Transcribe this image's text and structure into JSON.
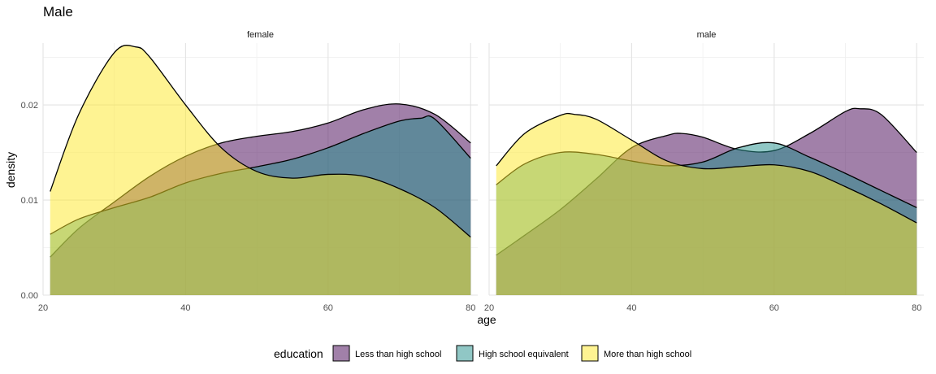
{
  "chart_data": {
    "type": "area",
    "title": "Male",
    "xlabel": "age",
    "ylabel": "density",
    "xlim": [
      20,
      81
    ],
    "ylim": [
      0,
      0.0265
    ],
    "x_ticks": [
      20,
      40,
      60,
      80
    ],
    "y_ticks": [
      0.0,
      0.01,
      0.02
    ],
    "y_tick_labels": [
      "0.00",
      "0.01",
      "0.02"
    ],
    "grid": true,
    "legend_position": "bottom",
    "legend_title": "education",
    "colors": {
      "Less than high school": "#440154",
      "High school equivalent": "#21908C",
      "More than high school": "#FDE725"
    },
    "fill_opacity": 0.5,
    "panels": [
      {
        "label": "female",
        "series": [
          {
            "name": "Less than high school",
            "x": [
              21,
              25,
              30,
              35,
              40,
              45,
              50,
              55,
              60,
              65,
              70,
              75,
              80
            ],
            "y": [
              0.004,
              0.007,
              0.0098,
              0.0125,
              0.0146,
              0.016,
              0.0167,
              0.0172,
              0.0181,
              0.0195,
              0.0201,
              0.019,
              0.016
            ]
          },
          {
            "name": "High school equivalent",
            "x": [
              21,
              25,
              30,
              35,
              40,
              45,
              50,
              55,
              60,
              65,
              70,
              73,
              75,
              80
            ],
            "y": [
              0.0064,
              0.008,
              0.0092,
              0.0103,
              0.0118,
              0.0128,
              0.0135,
              0.0143,
              0.0155,
              0.017,
              0.0183,
              0.0186,
              0.0185,
              0.0144
            ]
          },
          {
            "name": "More than high school",
            "x": [
              21,
              25,
              30,
              33,
              35,
              40,
              45,
              50,
              55,
              60,
              65,
              70,
              75,
              80
            ],
            "y": [
              0.0109,
              0.019,
              0.0255,
              0.0261,
              0.025,
              0.02,
              0.0155,
              0.013,
              0.0123,
              0.0127,
              0.0125,
              0.0112,
              0.0092,
              0.0061
            ]
          }
        ]
      },
      {
        "label": "male",
        "series": [
          {
            "name": "Less than high school",
            "x": [
              21,
              25,
              30,
              35,
              40,
              45,
              47,
              50,
              55,
              60,
              65,
              70,
              72,
              75,
              80
            ],
            "y": [
              0.0042,
              0.0063,
              0.009,
              0.0122,
              0.0155,
              0.0168,
              0.017,
              0.0166,
              0.0153,
              0.0152,
              0.017,
              0.0193,
              0.0196,
              0.019,
              0.015
            ]
          },
          {
            "name": "High school equivalent",
            "x": [
              21,
              25,
              30,
              35,
              40,
              45,
              50,
              55,
              60,
              65,
              70,
              75,
              80
            ],
            "y": [
              0.0116,
              0.0138,
              0.015,
              0.0148,
              0.0141,
              0.0136,
              0.014,
              0.0155,
              0.016,
              0.0145,
              0.0128,
              0.011,
              0.0092
            ]
          },
          {
            "name": "More than high school",
            "x": [
              21,
              25,
              30,
              32,
              35,
              40,
              45,
              50,
              55,
              60,
              65,
              70,
              75,
              80
            ],
            "y": [
              0.0136,
              0.017,
              0.0189,
              0.019,
              0.0185,
              0.0163,
              0.0141,
              0.0133,
              0.0135,
              0.0137,
              0.013,
              0.0114,
              0.0096,
              0.0076
            ]
          }
        ]
      }
    ]
  }
}
